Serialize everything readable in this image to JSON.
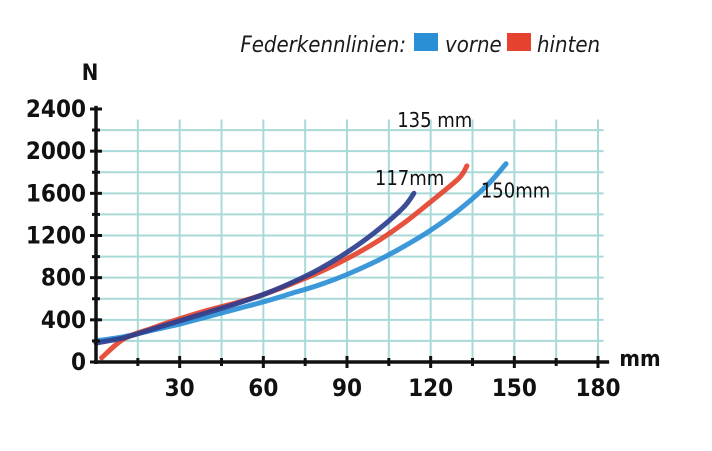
{
  "chart_data": {
    "type": "line",
    "legend_title": "Federkennlinien:",
    "legend_position": "top-right",
    "xlabel": "mm",
    "ylabel": "N",
    "xlim": [
      0,
      180
    ],
    "ylim": [
      0,
      2400
    ],
    "x_ticks": [
      30,
      60,
      90,
      120,
      150,
      180
    ],
    "x_ticks_labels": [
      "30",
      "60",
      "90",
      "120",
      "150",
      "180"
    ],
    "y_ticks": [
      0,
      400,
      800,
      1200,
      1600,
      2000,
      2400
    ],
    "y_ticks_labels": [
      "0",
      "400",
      "800",
      "1200",
      "1600",
      "2000",
      "2400"
    ],
    "grid": true,
    "series": [
      {
        "name": "vorne",
        "color": "#2b8fd6",
        "x": [
          0,
          10,
          20,
          30,
          40,
          50,
          60,
          70,
          80,
          90,
          100,
          110,
          120,
          130,
          140,
          147
        ],
        "y": [
          200,
          240,
          300,
          360,
          430,
          500,
          570,
          650,
          730,
          830,
          950,
          1090,
          1250,
          1440,
          1670,
          1880
        ]
      },
      {
        "name": "hinten",
        "color": "#e5432f",
        "x": [
          2,
          10,
          20,
          30,
          40,
          50,
          60,
          70,
          80,
          90,
          100,
          110,
          120,
          130,
          133
        ],
        "y": [
          40,
          220,
          320,
          410,
          490,
          560,
          640,
          740,
          850,
          980,
          1130,
          1310,
          1520,
          1740,
          1860
        ]
      },
      {
        "name": "",
        "color": "#2c3f8e",
        "x": [
          0,
          10,
          20,
          30,
          40,
          50,
          60,
          70,
          80,
          90,
          100,
          110,
          114
        ],
        "y": [
          180,
          230,
          310,
          390,
          470,
          550,
          640,
          750,
          880,
          1040,
          1230,
          1460,
          1600
        ]
      }
    ],
    "annotations": [
      {
        "text": "117mm",
        "x": 100,
        "y": 1680
      },
      {
        "text": "135  mm",
        "x": 108,
        "y": 2230
      },
      {
        "text": "150mm",
        "x": 138,
        "y": 1560
      }
    ]
  }
}
